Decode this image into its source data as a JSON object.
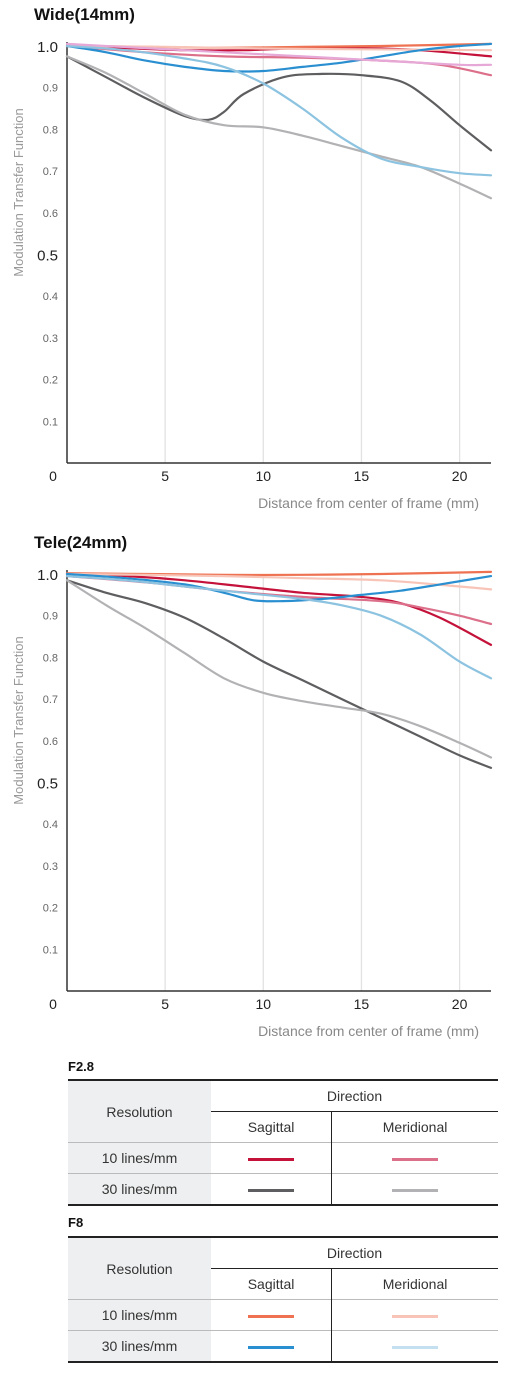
{
  "chart_data": [
    {
      "type": "line",
      "title": "Wide(14mm)",
      "ylabel": "Modulation Transfer Function",
      "xlabel": "Distance from center of frame (mm)",
      "xlim": [
        0,
        21.6
      ],
      "ylim": [
        0,
        1.0
      ],
      "xticks": [
        "0",
        "5",
        "10",
        "15",
        "20"
      ],
      "yticks": [
        "1.0",
        "0.9",
        "0.8",
        "0.7",
        "0.6",
        "0.5",
        "0.4",
        "0.3",
        "0.2",
        "0.1"
      ],
      "grid": true,
      "series": [
        {
          "color": "#c4123a",
          "x": [
            0,
            3,
            6,
            9,
            12,
            15,
            18,
            21.6
          ],
          "values": [
            1.0,
            0.995,
            0.99,
            0.99,
            0.995,
            0.995,
            0.99,
            0.975
          ]
        },
        {
          "color": "#dc6f8a",
          "x": [
            0,
            4,
            8,
            12,
            16,
            19,
            21.6
          ],
          "values": [
            1.0,
            0.985,
            0.975,
            0.972,
            0.965,
            0.955,
            0.93
          ]
        },
        {
          "color": "#5e5e60",
          "x": [
            0,
            2,
            4,
            6,
            7.2,
            8,
            9,
            11,
            13,
            15,
            17,
            18.5,
            20,
            21.6
          ],
          "values": [
            0.975,
            0.925,
            0.875,
            0.832,
            0.823,
            0.842,
            0.885,
            0.925,
            0.933,
            0.93,
            0.915,
            0.87,
            0.81,
            0.75
          ]
        },
        {
          "color": "#b2b2b4",
          "x": [
            0,
            2,
            4,
            6,
            8,
            10,
            12,
            14,
            16,
            18,
            20,
            21.6
          ],
          "values": [
            0.975,
            0.935,
            0.885,
            0.835,
            0.81,
            0.805,
            0.785,
            0.76,
            0.735,
            0.71,
            0.67,
            0.635
          ]
        },
        {
          "color": "#ee7251",
          "x": [
            0,
            4,
            8,
            12,
            16,
            21.6
          ],
          "values": [
            1.0,
            0.998,
            0.996,
            0.998,
            1.0,
            1.005
          ]
        },
        {
          "color": "#f7c4b7",
          "x": [
            0,
            5,
            10,
            15,
            21.6
          ],
          "values": [
            1.0,
            0.998,
            0.994,
            0.992,
            0.99
          ]
        },
        {
          "color": "#2a8fd0",
          "x": [
            0,
            2,
            4,
            6,
            8,
            10,
            12,
            14,
            16,
            18,
            20,
            21.6
          ],
          "values": [
            1.0,
            0.985,
            0.965,
            0.95,
            0.94,
            0.94,
            0.95,
            0.96,
            0.975,
            0.99,
            1.0,
            1.005
          ]
        },
        {
          "color": "#8cc3e0",
          "x": [
            0,
            3,
            6,
            8,
            10,
            12,
            14,
            16,
            18,
            20,
            21.6
          ],
          "values": [
            1.0,
            0.99,
            0.97,
            0.95,
            0.91,
            0.85,
            0.78,
            0.73,
            0.71,
            0.695,
            0.69
          ]
        },
        {
          "color": "#e6a8d6",
          "x": [
            0,
            4,
            8,
            12,
            16,
            20,
            21.6
          ],
          "values": [
            1.005,
            0.995,
            0.985,
            0.975,
            0.965,
            0.955,
            0.955
          ]
        }
      ]
    },
    {
      "type": "line",
      "title": "Tele(24mm)",
      "ylabel": "Modulation Transfer Function",
      "xlabel": "Distance from center of frame (mm)",
      "xlim": [
        0,
        21.6
      ],
      "ylim": [
        0,
        1.0
      ],
      "xticks": [
        "0",
        "5",
        "10",
        "15",
        "20"
      ],
      "yticks": [
        "1.0",
        "0.9",
        "0.8",
        "0.7",
        "0.6",
        "0.5",
        "0.4",
        "0.3",
        "0.2",
        "0.1"
      ],
      "grid": true,
      "series": [
        {
          "color": "#c4123a",
          "x": [
            0,
            3,
            6,
            9,
            12,
            15,
            17,
            19,
            21.6
          ],
          "values": [
            1.0,
            0.995,
            0.985,
            0.97,
            0.955,
            0.945,
            0.93,
            0.895,
            0.83
          ]
        },
        {
          "color": "#dc6f8a",
          "x": [
            0,
            4,
            8,
            12,
            16,
            18,
            20,
            21.6
          ],
          "values": [
            0.995,
            0.98,
            0.96,
            0.945,
            0.935,
            0.92,
            0.9,
            0.88
          ]
        },
        {
          "color": "#5e5e60",
          "x": [
            0,
            2,
            4,
            6,
            8,
            10,
            12,
            14,
            16,
            18,
            20,
            21.6
          ],
          "values": [
            0.985,
            0.955,
            0.93,
            0.895,
            0.845,
            0.79,
            0.745,
            0.7,
            0.655,
            0.61,
            0.565,
            0.535
          ]
        },
        {
          "color": "#b2b2b4",
          "x": [
            0,
            2,
            4,
            6,
            8,
            10,
            12,
            14,
            16,
            18,
            20,
            21.6
          ],
          "values": [
            0.985,
            0.925,
            0.87,
            0.81,
            0.75,
            0.715,
            0.695,
            0.68,
            0.665,
            0.635,
            0.595,
            0.56
          ]
        },
        {
          "color": "#ee7251",
          "x": [
            0,
            4,
            8,
            12,
            16,
            21.6
          ],
          "values": [
            1.002,
            1.0,
            0.998,
            0.998,
            1.0,
            1.005
          ]
        },
        {
          "color": "#f7c4b7",
          "x": [
            0,
            4,
            8,
            12,
            16,
            20,
            21.6
          ],
          "values": [
            1.0,
            0.998,
            0.995,
            0.99,
            0.985,
            0.97,
            0.963
          ]
        },
        {
          "color": "#2a8fd0",
          "x": [
            0,
            3,
            6,
            8,
            9.5,
            11,
            13,
            15,
            17,
            19,
            21.6
          ],
          "values": [
            1.0,
            0.99,
            0.975,
            0.955,
            0.937,
            0.935,
            0.94,
            0.95,
            0.96,
            0.975,
            0.995
          ]
        },
        {
          "color": "#8cc3e0",
          "x": [
            0,
            3,
            6,
            9,
            12,
            14,
            16,
            18,
            20,
            21.6
          ],
          "values": [
            0.995,
            0.985,
            0.97,
            0.955,
            0.94,
            0.925,
            0.9,
            0.855,
            0.79,
            0.75
          ]
        }
      ]
    }
  ],
  "legend_tables": [
    {
      "heading": "F2.8",
      "resolution_label": "Resolution",
      "direction_label": "Direction",
      "sagittal_label": "Sagittal",
      "meridional_label": "Meridional",
      "rows": [
        {
          "label": "10 lines/mm",
          "sagittal_color": "#c4123a",
          "meridional_color": "#dc6f8a"
        },
        {
          "label": "30 lines/mm",
          "sagittal_color": "#5e5e60",
          "meridional_color": "#b2b2b4"
        }
      ]
    },
    {
      "heading": "F8",
      "resolution_label": "Resolution",
      "direction_label": "Direction",
      "sagittal_label": "Sagittal",
      "meridional_label": "Meridional",
      "rows": [
        {
          "label": "10 lines/mm",
          "sagittal_color": "#ee7251",
          "meridional_color": "#f7c4b7"
        },
        {
          "label": "30 lines/mm",
          "sagittal_color": "#2a8fd0",
          "meridional_color": "#c4dff0"
        }
      ]
    }
  ]
}
